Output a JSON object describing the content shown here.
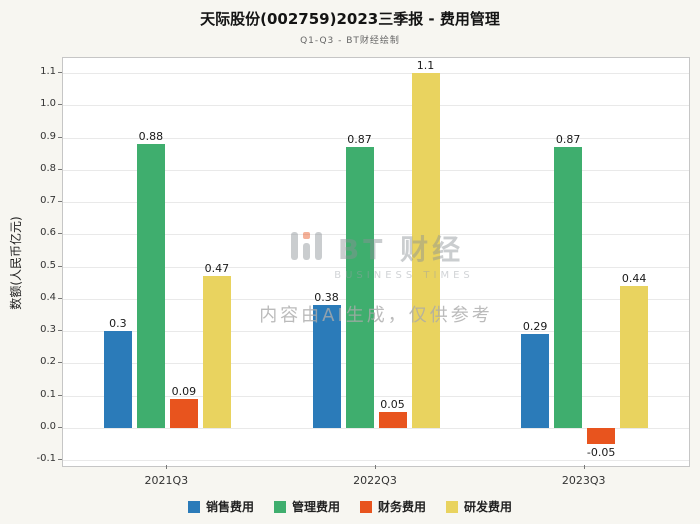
{
  "watermark": {
    "logo_text": "BT 财经",
    "logo_sub": "BUSINESS TIMES",
    "disclaimer": "内容由AI生成，仅供参考"
  },
  "chart_data": {
    "type": "bar",
    "title": "天际股份(002759)2023三季报 - 费用管理",
    "subtitle": "Q1-Q3 - BT财经绘制",
    "xlabel": "",
    "ylabel": "数额(人民币亿元)",
    "categories": [
      "2021Q3",
      "2022Q3",
      "2023Q3"
    ],
    "series": [
      {
        "name": "销售费用",
        "color": "#2b7bb9",
        "values": [
          0.3,
          0.38,
          0.29
        ]
      },
      {
        "name": "管理费用",
        "color": "#3fae6e",
        "values": [
          0.88,
          0.87,
          0.87
        ]
      },
      {
        "name": "财务费用",
        "color": "#e8541e",
        "values": [
          0.09,
          0.05,
          -0.05
        ]
      },
      {
        "name": "研发费用",
        "color": "#e9d35f",
        "values": [
          0.47,
          1.1,
          0.44
        ]
      }
    ],
    "value_labels": [
      [
        "0.3",
        "0.88",
        "0.09",
        "0.47"
      ],
      [
        "0.38",
        "0.87",
        "0.05",
        "1.1"
      ],
      [
        "0.29",
        "0.87",
        "-0.05",
        "0.44"
      ]
    ],
    "ylim": [
      -0.1,
      1.1
    ],
    "yticks": [
      "-0.1",
      "0.0",
      "0.1",
      "0.2",
      "0.3",
      "0.4",
      "0.5",
      "0.6",
      "0.7",
      "0.8",
      "0.9",
      "1.0",
      "1.1"
    ],
    "grid": true,
    "legend_position": "bottom"
  }
}
